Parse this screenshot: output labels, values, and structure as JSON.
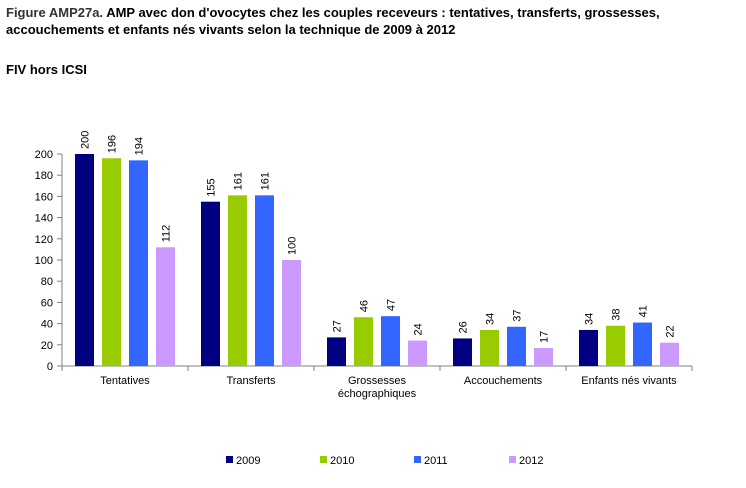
{
  "figure": {
    "label": "Figure AMP27a.",
    "title_line1": "AMP avec don d'ovocytes chez les couples receveurs : tentatives, transferts, grossesses,",
    "title_line2": "accouchements et enfants nés vivants selon la technique de 2009 à 2012",
    "subtitle": "FIV hors ICSI"
  },
  "chart_data": {
    "type": "bar",
    "title": "",
    "xlabel": "",
    "ylabel": "",
    "categories": [
      "Tentatives",
      "Transferts",
      "Grossesses\néchographiques",
      "Accouchements",
      "Enfants nés vivants"
    ],
    "series": [
      {
        "name": "2009",
        "color": "#000080",
        "values": [
          200,
          155,
          27,
          26,
          34
        ]
      },
      {
        "name": "2010",
        "color": "#99CC00",
        "values": [
          196,
          161,
          46,
          34,
          38
        ]
      },
      {
        "name": "2011",
        "color": "#3366FF",
        "values": [
          194,
          161,
          47,
          37,
          41
        ]
      },
      {
        "name": "2012",
        "color": "#CC99FF",
        "values": [
          112,
          100,
          24,
          17,
          22
        ]
      }
    ],
    "ylim": [
      0,
      200
    ],
    "yticks": [
      0,
      20,
      40,
      60,
      80,
      100,
      120,
      140,
      160,
      180,
      200
    ],
    "data_labels": "vertical, above bars",
    "grid": false,
    "legend_position": "bottom"
  }
}
